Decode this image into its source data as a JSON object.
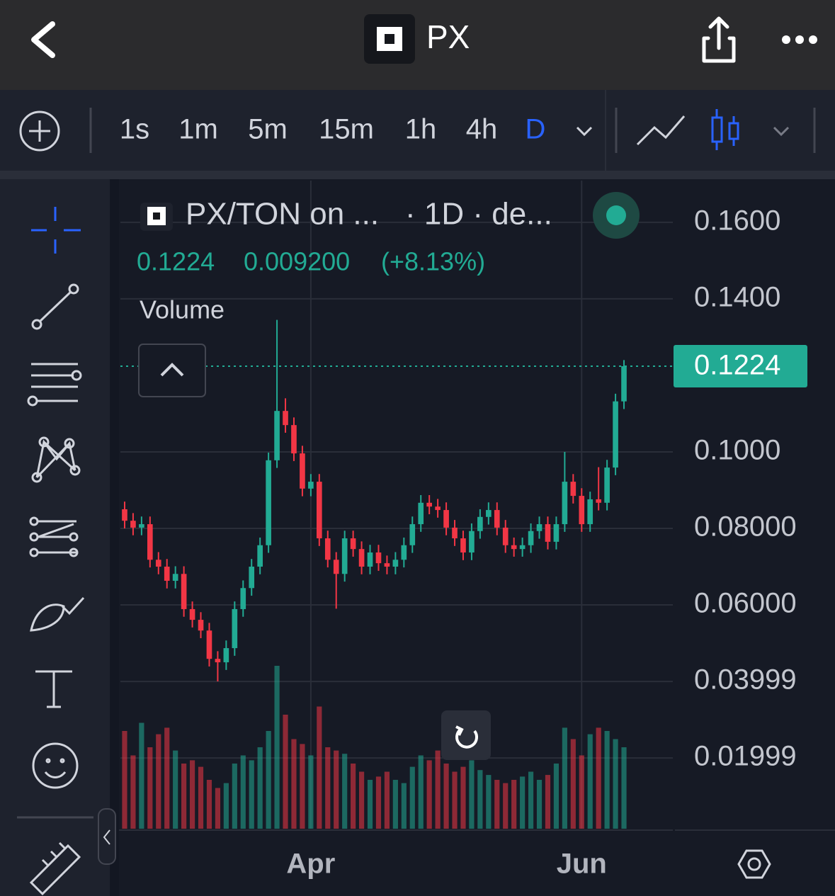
{
  "header": {
    "title": "PX"
  },
  "toolbar": {
    "intervals": [
      "1s",
      "1m",
      "5m",
      "15m",
      "1h",
      "4h",
      "D"
    ]
  },
  "chart_data": {
    "type": "candlestick",
    "symbol": "PX/TON on ...",
    "meta": "· 1D · de...",
    "change": "0.009200",
    "change_pct": "(+8.13%)",
    "volume_label": "Volume",
    "up_color": "#22ab94",
    "down_color": "#f23645",
    "categories": [
      null,
      null,
      null,
      null,
      null,
      null,
      null,
      null,
      null,
      null,
      null,
      null,
      null,
      null,
      null,
      null,
      null,
      null,
      null,
      null,
      null,
      null,
      "Apr",
      null,
      null,
      null,
      null,
      null,
      null,
      null,
      null,
      null,
      null,
      null,
      null,
      null,
      null,
      null,
      null,
      null,
      null,
      null,
      null,
      null,
      null,
      null,
      null,
      null,
      null,
      null,
      null,
      null,
      null,
      null,
      "Jun",
      null,
      null,
      null,
      null,
      null
    ],
    "open": [
      0.085,
      0.082,
      0.0802,
      0.0811,
      0.0718,
      0.07,
      0.0663,
      0.0681,
      0.0589,
      0.0561,
      0.0533,
      0.0459,
      0.045,
      0.0487,
      0.0589,
      0.0644,
      0.07,
      0.0756,
      0.0978,
      0.1107,
      0.107,
      0.0996,
      0.0904,
      0.0922,
      0.0774,
      0.0718,
      0.0681,
      0.0774,
      0.0746,
      0.07,
      0.0737,
      0.0709,
      0.07,
      0.0718,
      0.0756,
      0.0811,
      0.0867,
      0.0857,
      0.0848,
      0.0802,
      0.0774,
      0.0737,
      0.0793,
      0.083,
      0.0848,
      0.0802,
      0.0756,
      0.0746,
      0.0756,
      0.0793,
      0.0811,
      0.0765,
      0.0811,
      0.0922,
      0.0885,
      0.0811,
      0.0876,
      0.0867,
      0.0959,
      0.1132
    ],
    "high": [
      0.087,
      0.084,
      0.0831,
      0.0831,
      0.0738,
      0.072,
      0.0701,
      0.0701,
      0.0609,
      0.0581,
      0.0553,
      0.0479,
      0.0507,
      0.0609,
      0.0664,
      0.072,
      0.0776,
      0.0998,
      0.1345,
      0.114,
      0.109,
      0.1016,
      0.0942,
      0.0942,
      0.0794,
      0.0738,
      0.0794,
      0.0794,
      0.0766,
      0.0757,
      0.0757,
      0.0729,
      0.0738,
      0.0776,
      0.0831,
      0.0887,
      0.0887,
      0.0877,
      0.0868,
      0.0822,
      0.0794,
      0.0813,
      0.085,
      0.0868,
      0.0868,
      0.0822,
      0.0776,
      0.0776,
      0.0813,
      0.0831,
      0.0831,
      0.0831,
      0.1,
      0.0942,
      0.0905,
      0.0896,
      0.096,
      0.0979,
      0.1152,
      0.124
    ],
    "low": [
      0.08,
      0.0782,
      0.0782,
      0.0698,
      0.068,
      0.0643,
      0.0643,
      0.0569,
      0.0541,
      0.0513,
      0.0439,
      0.04,
      0.043,
      0.0467,
      0.0569,
      0.0624,
      0.068,
      0.0736,
      0.0958,
      0.105,
      0.0976,
      0.0884,
      0.0884,
      0.0754,
      0.0698,
      0.059,
      0.0661,
      0.0726,
      0.068,
      0.068,
      0.0689,
      0.068,
      0.068,
      0.0698,
      0.0736,
      0.0791,
      0.0837,
      0.0828,
      0.0782,
      0.0754,
      0.0717,
      0.0717,
      0.0773,
      0.081,
      0.0782,
      0.0736,
      0.0726,
      0.0726,
      0.0736,
      0.0773,
      0.0745,
      0.0745,
      0.0791,
      0.0865,
      0.0791,
      0.0791,
      0.0847,
      0.0847,
      0.0939,
      0.1112
    ],
    "close": [
      0.082,
      0.0802,
      0.0811,
      0.0718,
      0.07,
      0.0663,
      0.0681,
      0.0589,
      0.0561,
      0.0533,
      0.0459,
      0.045,
      0.0487,
      0.0589,
      0.0644,
      0.07,
      0.0756,
      0.0978,
      0.1107,
      0.107,
      0.0996,
      0.0904,
      0.0922,
      0.0774,
      0.0718,
      0.0681,
      0.0774,
      0.0746,
      0.07,
      0.0737,
      0.0709,
      0.07,
      0.0718,
      0.0756,
      0.0811,
      0.0867,
      0.0857,
      0.0848,
      0.0802,
      0.0774,
      0.0737,
      0.0793,
      0.083,
      0.0848,
      0.0802,
      0.0756,
      0.0746,
      0.0756,
      0.0793,
      0.0811,
      0.0765,
      0.0811,
      0.0922,
      0.0885,
      0.0811,
      0.0876,
      0.0867,
      0.0959,
      0.1132,
      0.1224
    ],
    "volume": [
      60,
      45,
      65,
      50,
      58,
      62,
      48,
      40,
      42,
      38,
      30,
      25,
      28,
      40,
      45,
      42,
      50,
      60,
      100,
      70,
      55,
      52,
      45,
      75,
      50,
      48,
      46,
      40,
      35,
      30,
      32,
      35,
      30,
      28,
      38,
      45,
      42,
      48,
      40,
      35,
      38,
      42,
      36,
      33,
      30,
      28,
      30,
      32,
      35,
      30,
      33,
      40,
      62,
      55,
      45,
      58,
      62,
      60,
      55,
      50
    ],
    "ylim": [
      0.0015,
      0.1709
    ],
    "yticks": [
      {
        "value": 0.16,
        "label": "0.1600"
      },
      {
        "value": 0.14,
        "label": "0.1400"
      },
      {
        "value": 0.1,
        "label": "0.1000"
      },
      {
        "value": 0.08,
        "label": "0.08000"
      },
      {
        "value": 0.06,
        "label": "0.06000"
      },
      0.03999,
      0.01999
    ],
    "grid": true
  }
}
